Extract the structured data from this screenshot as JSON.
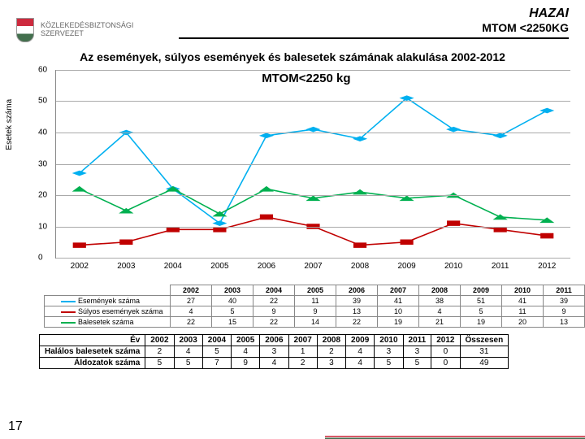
{
  "header": {
    "title_top": "HAZAI",
    "title_sub": "MTOM <2250KG",
    "org_line1": "KÖZLEKEDÉSBIZTONSÁGI",
    "org_line2": "SZERVEZET"
  },
  "subtitle": "Az események, súlyos események és balesetek számának alakulása 2002-2012",
  "chart": {
    "title": "MTOM<2250 kg",
    "y_axis_label": "Esetek száma",
    "y_min": 0,
    "y_max": 60,
    "y_step": 10,
    "years": [
      "2002",
      "2003",
      "2004",
      "2005",
      "2006",
      "2007",
      "2008",
      "2009",
      "2010",
      "2011",
      "2012"
    ],
    "series": [
      {
        "name": "Események száma",
        "color": "#00b0f0",
        "marker": "diamond",
        "values": [
          27,
          40,
          22,
          11,
          39,
          41,
          38,
          51,
          41,
          39,
          47
        ]
      },
      {
        "name": "Súlyos események száma",
        "color": "#c00000",
        "marker": "square",
        "values": [
          4,
          5,
          9,
          9,
          13,
          10,
          4,
          5,
          11,
          9,
          7
        ]
      },
      {
        "name": "Balesetek száma",
        "color": "#00b050",
        "marker": "triangle",
        "values": [
          22,
          15,
          22,
          14,
          22,
          19,
          21,
          19,
          20,
          13,
          12
        ]
      }
    ],
    "grid_color": "#aaaaaa",
    "tick_fontsize": 10,
    "title_fontsize": 15,
    "line_width": 1.6
  },
  "fatal_table": {
    "col_header": "Év",
    "years": [
      "2002",
      "2003",
      "2004",
      "2005",
      "2006",
      "2007",
      "2008",
      "2009",
      "2010",
      "2011",
      "2012"
    ],
    "total_label": "Összesen",
    "rows": [
      {
        "label": "Halálos balesetek száma",
        "values": [
          2,
          4,
          5,
          4,
          3,
          1,
          2,
          4,
          3,
          3,
          0
        ],
        "total": 31
      },
      {
        "label": "Áldozatok száma",
        "values": [
          5,
          5,
          7,
          9,
          4,
          2,
          3,
          4,
          5,
          5,
          0
        ],
        "total": 49
      }
    ]
  },
  "page_number": "17"
}
